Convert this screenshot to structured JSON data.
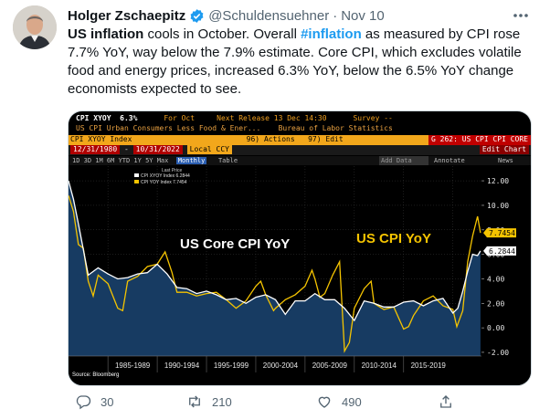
{
  "tweet": {
    "author_name": "Holger Zschaepitz",
    "handle": "@Schuldensuehner",
    "separator": "·",
    "date": "Nov 10",
    "text": {
      "p1": "US inflation",
      "p2": " cools in October. Overall ",
      "p3": "#inflation",
      "p4": " as measured by CPI rose 7.7% YoY, way below the 7.9% estimate. Core CPI, which excludes volatile food and energy prices, increased 6.3% YoY, below the 6.5% YoY change economists expected to see."
    },
    "stats": {
      "replies": "30",
      "retweets": "210",
      "likes": "490"
    }
  },
  "terminal": {
    "row1": {
      "ticker": "CPI XYOY",
      "value": "6.3%",
      "for_label": "For Oct",
      "next_release": "Next Release 13 Dec 14:30",
      "survey": "Survey --"
    },
    "row2": {
      "series": "US CPI Urban Consumers Less Food & Ener...",
      "source": "Bureau of Labor Statistics"
    },
    "row3": {
      "index": "CPI XYOY Index",
      "actions": "96) Actions",
      "edit": "97) Edit",
      "chart_code": "G 262: US CPI CPI CORE"
    },
    "row4": {
      "start": "12/31/1980",
      "end": "10/31/2022",
      "ccy": "Local CCY",
      "edit_chart": "Edit Chart"
    },
    "row5": {
      "periods": "1D  3D  1M  6M  YTD  1Y  5Y  Max",
      "freq": "Monthly",
      "table": "Table",
      "add_data": "Add Data",
      "annotate": "Annotate",
      "news": "News"
    },
    "legend": {
      "title": "Last Price",
      "core": "CPI XYOY Index  6.2844",
      "cpi": "CPI YOY Index  7.7454"
    },
    "label_core": "US Core CPI YoY",
    "label_cpi": "US CPI YoY",
    "source": "Source: Bloomberg",
    "colors": {
      "cpi": "#f5c400",
      "core": "#ffffff",
      "area": "#173b62",
      "up": "#6ec10c"
    }
  },
  "chart_data": {
    "type": "line",
    "x_tick_labels": [
      "1985-1989",
      "1990-1994",
      "1995-1999",
      "2000-2004",
      "2005-2009",
      "2010-2014",
      "2015-2019"
    ],
    "y_ticks": [
      12.0,
      10.0,
      8.0,
      6.0,
      4.0,
      2.0,
      0.0,
      -2.0
    ],
    "y_tick_labels": [
      "12.00",
      "10.00",
      "8.00",
      "6.00",
      "4.00",
      "2.00",
      "0.00",
      "-2.00"
    ],
    "ylim": [
      -2.3,
      13.2
    ],
    "xlim": [
      1981,
      2022.9
    ],
    "last_values": {
      "cpi": "7.7454",
      "core": "6.2844"
    },
    "series": [
      {
        "name": "CPI YOY Index",
        "x": [
          1981,
          1981.5,
          1982,
          1982.5,
          1983,
          1983.5,
          1984,
          1985,
          1986,
          1986.5,
          1987,
          1988,
          1989,
          1990,
          1990.8,
          1991.5,
          1992,
          1993,
          1994,
          1995,
          1996,
          1997,
          1998,
          1999,
          2000,
          2000.5,
          2001,
          2001.8,
          2002,
          2003,
          2004,
          2005,
          2005.7,
          2006,
          2006.5,
          2007,
          2007.8,
          2008.5,
          2009,
          2009.5,
          2010,
          2011,
          2011.7,
          2012,
          2013,
          2014,
          2015,
          2015.5,
          2016,
          2017,
          2018,
          2019,
          2020,
          2020.4,
          2021,
          2021.5,
          2022,
          2022.5,
          2022.8
        ],
        "values": [
          10.8,
          9.5,
          6.8,
          6.5,
          3.8,
          2.6,
          4.3,
          3.6,
          1.6,
          1.4,
          3.8,
          4.2,
          5.0,
          5.2,
          6.2,
          4.5,
          2.9,
          2.9,
          2.6,
          2.8,
          2.9,
          2.3,
          1.6,
          2.2,
          3.4,
          3.8,
          2.7,
          1.4,
          1.6,
          2.3,
          2.7,
          3.4,
          4.7,
          4.0,
          2.5,
          2.8,
          4.3,
          5.4,
          -1.9,
          -1.2,
          1.6,
          3.2,
          3.8,
          2.0,
          1.5,
          1.7,
          -0.1,
          0.1,
          1.0,
          2.2,
          2.6,
          1.8,
          1.5,
          0.1,
          1.4,
          5.4,
          7.5,
          9.1,
          7.75
        ]
      },
      {
        "name": "CPI XYOY Index",
        "x": [
          1981,
          1981.5,
          1982,
          1983,
          1984,
          1985,
          1986,
          1987,
          1988,
          1989,
          1990,
          1991,
          1992,
          1993,
          1994,
          1995,
          1996,
          1997,
          1998,
          1999,
          2000,
          2001,
          2002,
          2003,
          2004,
          2005,
          2006,
          2007,
          2008,
          2009,
          2010,
          2011,
          2012,
          2013,
          2014,
          2015,
          2016,
          2017,
          2018,
          2019,
          2020,
          2020.5,
          2021,
          2021.5,
          2022,
          2022.5,
          2022.8
        ],
        "values": [
          12.0,
          10.5,
          8.5,
          4.3,
          4.9,
          4.4,
          4.0,
          4.1,
          4.4,
          4.5,
          5.2,
          4.4,
          3.3,
          3.2,
          2.8,
          3.0,
          2.7,
          2.3,
          2.4,
          2.0,
          2.5,
          2.7,
          2.3,
          1.1,
          2.2,
          2.2,
          2.8,
          2.3,
          2.3,
          1.6,
          0.6,
          2.2,
          2.0,
          1.7,
          1.7,
          2.1,
          2.2,
          1.8,
          2.2,
          2.4,
          1.2,
          1.6,
          3.0,
          4.6,
          6.0,
          5.9,
          6.28
        ]
      }
    ]
  }
}
